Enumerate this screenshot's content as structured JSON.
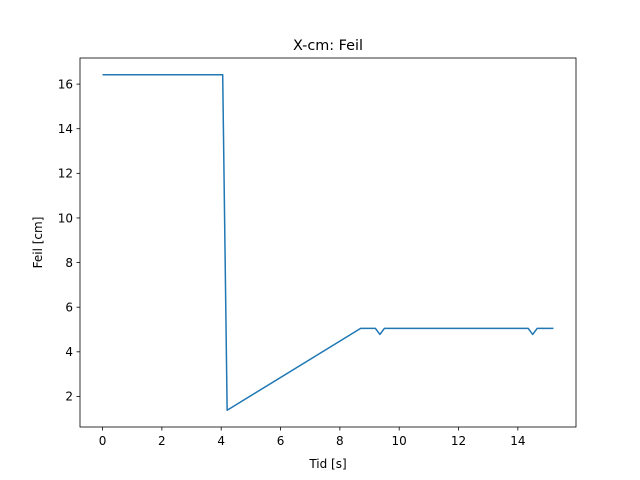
{
  "chart_data": {
    "type": "line",
    "title": "X-cm: Feil",
    "xlabel": "Tid [s]",
    "ylabel": "Feil [cm]",
    "xlim": [
      -0.76,
      15.96
    ],
    "ylim": [
      0.63,
      17.17
    ],
    "xticks": [
      0,
      2,
      4,
      6,
      8,
      10,
      12,
      14
    ],
    "yticks": [
      2,
      4,
      6,
      8,
      10,
      12,
      14,
      16
    ],
    "grid": false,
    "line_color": "#1f77b4",
    "series": [
      {
        "x": [
          0,
          4.05,
          4.2,
          8.7,
          9.2,
          9.35,
          9.5,
          14.35,
          14.5,
          14.65,
          15.2
        ],
        "y": [
          16.42,
          16.42,
          1.38,
          5.05,
          5.05,
          4.78,
          5.05,
          5.05,
          4.78,
          5.05,
          5.05
        ]
      }
    ]
  }
}
